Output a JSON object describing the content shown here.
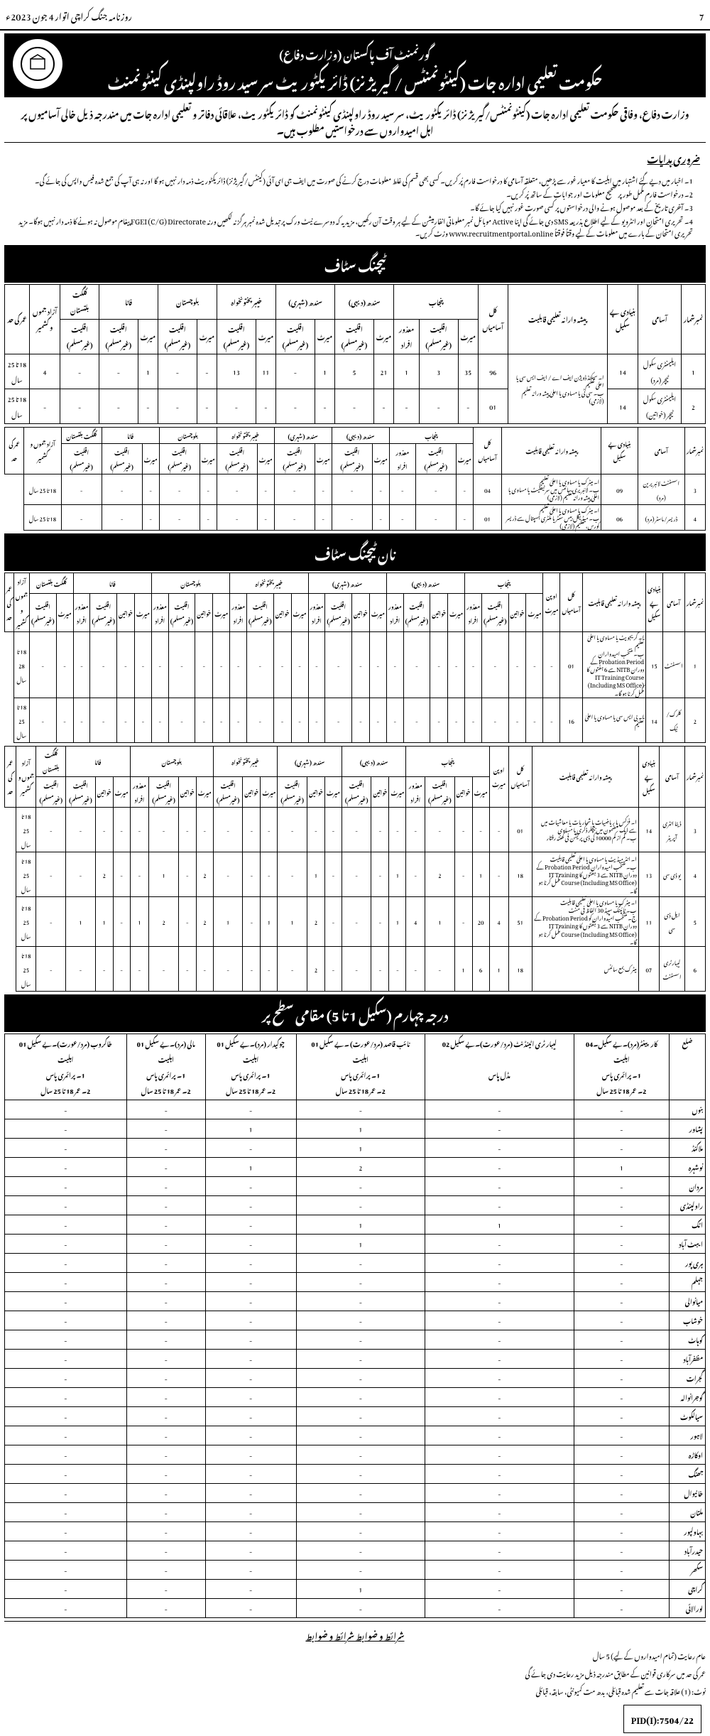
{
  "header": {
    "newspaper": "روزنامہ جنگ کراچی اتوار 4 جون 2023ء",
    "page": "7"
  },
  "org": {
    "top": "گورنمنٹ آف پاکستان (وزارت دفاع)",
    "main": "حکومت تعلیمی ادارہ جات (کینٹونمنٹس / گیریژنز) ڈائریکٹوریٹ سر سید روڈ راولپنڈی کینٹونمنٹ"
  },
  "intro": "وزارت دفاع، وفاقی حکومت تعلیمی ادارہ جات (کینٹونمنٹس/گیریژنز) ڈائریکٹوریٹ، سر سید روڈ راولپنڈی کینٹونمنٹ کو ڈائریکٹوریٹ، علاقائی دفاتر و تعلیمی ادارہ جات میں مندرجہ ذیل خالی آسامیوں پر اہل امیدواروں سے درخواستیں مطلوب ہیں۔",
  "notes_title": "ضروری ہدایات",
  "notes": [
    "اخبار میں دیے گئے اشتہار میں اہلیت کا معیار غور سے پڑھیں، متعلقہ آسامی کا درخواست فارم پُر کریں۔ کسی بھی قسم کی غلط معلومات درج کرنے کی صورت میں ایف جی ای آئی (کینٹس/گیریژنز) ڈائریکٹوریٹ ذمہ دار نہیں ہو گا اور نہ ہی آپ کی جمع شدہ فیس واپس کی جائے گی۔",
    "درخواست فارم مکمل طور پر صحیح معلومات اور جوابات کے ساتھ پُر کریں۔",
    "آخری تاریخ کے بعد موصول ہونے والی درخواستوں پر کسی صورت غور نہیں کیا جائے گا۔",
    "تحریری امتحان اور انٹرویو کے لیے اطلاع بذریعہ SMS دی جائے گی اپنا Active موبائل نمبر معلوماتی انفارمیشن کے لیے ہر وقت آن رکھیں، مزید یہ کہ دوسرے نیٹ ورک پر تبدیل شدہ نمبر ہرگز نہ لکھیں ورنہ FGEI (C/G) Directorate پیغام موصول نہ ہونے کا ذمہ دار نہیں ہوگا۔ مزید تحریری امتحان کے بارے میں معلومات کے لیے وقتاً فوقتاً www.recruitmentportal.online وزٹ کریں۔"
  ],
  "section_teaching": "ٹیچنگ سٹاف",
  "section_nonteaching": "نان ٹیچنگ سٹاف",
  "section_class4": "درجہ چہارم (سکیل 1 تا 5) مقامی سطح پر",
  "teach_headers": {
    "sno": "نمبرشمار",
    "post": "آسامی",
    "scale": "بنیادی پے سکیل",
    "qual": "پیشہ وارانہ تعلیمی قابلیت",
    "total": "کل آسامیاں",
    "punjab": "پنجاب",
    "sindh_r": "سندھ (دیہی)",
    "sindh_u": "سندھ (شہری)",
    "kpk": "خیبر پختونخواہ",
    "baloch": "بلوچستان",
    "fata": "فاٹا",
    "gb": "گلگت بلتستان",
    "ajk": "آزاد جموں و کشمیر",
    "age": "عمر کی حد",
    "merit": "میرٹ",
    "min": "اقلیت (غیرمسلم)",
    "dis": "معذور افراد",
    "wom": "خواتین",
    "open": "اوپن میرٹ"
  },
  "teach_rows": [
    {
      "sno": "1",
      "post": "ایلیمنٹری سکول ٹیچر (مرد)",
      "scale": "14",
      "qual": "ا۔ سیکنڈ ڈویژن ایف اے / ایف ایس سی یا اعلیٰ تعلیم\nب۔ سی ٹی یا مساوی یا اعلیٰ پیشہ ورانہ تعلیم (لازمی)",
      "total": "96",
      "pm": "35",
      "pmin": "3",
      "pdis": "1",
      "srm": "21",
      "srmin": "5",
      "sum": "1",
      "kpm": "11",
      "km": "13",
      "bm": "-",
      "fm": "1",
      "fmin": "-",
      "gbm": "-",
      "ajk": "4",
      "age": "18 تا 25 سال"
    },
    {
      "sno": "2",
      "post": "ایلیمنٹری سکول ٹیچر (خواتین)",
      "scale": "14",
      "qual": "",
      "total": "01",
      "pm": "-",
      "pmin": "-",
      "pdis": "-",
      "srm": "-",
      "srmin": "-",
      "sum": "-",
      "kpm": "-",
      "km": "-",
      "bm": "-",
      "fm": "-",
      "fmin": "-",
      "gbm": "-",
      "ajk": "-",
      "age": "18 تا 25 سال"
    }
  ],
  "teach_rows2": [
    {
      "sno": "3",
      "post": "اسسٹنٹ لائبریرین (مرد)",
      "scale": "09",
      "qual": "ا۔ میٹرک یا مساوی یا اعلیٰ تعلیم\nب۔ لائبریری سائنس میں سرٹیفکیٹ یا مساوی یا اعلیٰ پیشہ ورانہ تعلیم (لازمی)",
      "total": "04",
      "cells": [
        "-",
        "-",
        "-",
        "-",
        "-",
        "-",
        "-",
        "-",
        "-",
        "-",
        "-",
        "-",
        "-"
      ],
      "age": "18 تا 25 سال"
    },
    {
      "sno": "4",
      "post": "ڈریسر/ماسٹر (مرد)",
      "scale": "06",
      "qual": "ا۔ میٹرک یا مساوی یا اعلیٰ تعلیم\nب۔ میڈیکل بیس سنٹر یا ملٹری ہسپتال سے ڈریسر کورس، تعلیم (لازمی)",
      "total": "01",
      "cells": [
        "-",
        "-",
        "-",
        "-",
        "-",
        "-",
        "-",
        "-",
        "-",
        "-",
        "-",
        "-",
        "-"
      ],
      "age": "18 تا 25 سال"
    }
  ],
  "nt_rows1": [
    {
      "sno": "1",
      "post": "اسسٹنٹ",
      "scale": "15",
      "qual": "ا۔ گریجویٹ یا مساوی یا اعلیٰ تعلیم\nب۔ منتخب امیدواران Probation Period کے دوران NITB سے 6 ہفتوں کا IT Training Course (Including MS Office) مکمل کرنا ہو گا۔",
      "total": "01",
      "age": "18 تا 28 سال"
    },
    {
      "sno": "2",
      "post": "کلرک/ٹیک",
      "scale": "14",
      "qual": "ا۔ بی ایس سی یا مساوی یا اعلیٰ تعلیم",
      "total": "16",
      "age": "18 تا 25 سال"
    }
  ],
  "nt_rows2": [
    {
      "sno": "3",
      "post": "ڈیٹا انٹری آپریٹر",
      "scale": "14",
      "qual": "ا۔ فزکس یا ریاضیات یا شماریات یا معاشیات میں سے ایک مضمون میں بیچلر ڈگری یا مساوی\nب۔ کم از کم 10000 کی ڈی پریشن فی گھنٹہ رفتار",
      "total": "01",
      "c": [
        "-",
        "-",
        "-",
        "-",
        "-",
        "-",
        "-",
        "-",
        "-",
        "-",
        "-",
        "-",
        "-",
        "-",
        "-",
        "-",
        "-",
        "-",
        "-",
        "-",
        "-"
      ],
      "age": "18 تا 25 سال"
    },
    {
      "sno": "4",
      "post": "یو ڈی سی",
      "scale": "13",
      "qual": "ا۔ انٹر میڈیٹ یا مساوی یا اعلیٰ تعلیمی قابلیت\nب۔ منتخب امیدواران Probation Period کے دوران NITB سے 3 ہفتوں کا IT Training Course (Including MS Office) مکمل کرنا ہو گا۔",
      "total": "18",
      "c": [
        "-",
        "1",
        "-",
        "2",
        "-",
        "1",
        "-",
        "-",
        "-",
        "1",
        "-",
        "-",
        "-",
        "-",
        "2",
        "-",
        "1",
        "-",
        "-",
        "2",
        "-"
      ],
      "age": "18 تا 25 سال"
    },
    {
      "sno": "5",
      "post": "ایل ڈی سی",
      "scale": "11",
      "qual": "ا۔ میٹرک یا مساوی یا اعلیٰ تعلیمی قابلیت\nب۔ ٹائپنگ سپیڈ 30 الفاظ فی منٹ\nج۔ منتخب امیدواران کو Probation Period کے دوران NITB سے 3 ہفتوں کا IT Training Course (Including MS Office) مکمل کرنا ہو گا۔",
      "total": "51",
      "c": [
        "4",
        "20",
        "-",
        "1",
        "4",
        "1",
        "-",
        "-",
        "-",
        "2",
        "1",
        "1",
        "-",
        "1",
        "2",
        "-",
        "2",
        "1",
        "-",
        "1",
        "1"
      ],
      "age": "18 تا 25 سال"
    },
    {
      "sno": "6",
      "post": "لیبارٹری اسسٹنٹ",
      "scale": "07",
      "qual": "میٹرک بمع سائنس",
      "total": "18",
      "c": [
        "1",
        "6",
        "1",
        "-",
        "-",
        "-",
        "-",
        "-",
        "-",
        "2",
        "-",
        "-",
        "-",
        "-",
        "-",
        "-",
        "-",
        "-",
        "-",
        "-",
        "-"
      ],
      "age": "18 تا 25 سال"
    }
  ],
  "class4_headers": [
    "ضلع",
    "کارپینٹر(مرد)۔بے سکیل۔04\nاہلیت\n1۔ پرائمری پاس\n2۔ عمر 18 تا 25 سال",
    "لیبارٹری اٹینڈنٹ (مرد/عورت)۔بے سکیل 02\n\nمڈل پاس",
    "نائب قاصد (مرد/عورت) ۔بے سکیل 01\nاہلیت\n1۔ پرائمری پاس\n2۔ عمر 18 تا 25 سال",
    "چوکیدار (مرد)۔بے سکیل 01\nاہلیت\n1۔ پرائمری پاس\n2۔ عمر 18 تا 25 سال",
    "مالی (مرد)۔بے سکیل 01\nاہلیت\n1۔ پرائمری پاس\n2۔ عمر 18 تا 25 سال",
    "خاکروب (مرد/عورت)۔بے سکیل 01\nاہلیت\n1۔ پرائمری پاس\n2۔ عمر 18 تا 25 سال"
  ],
  "districts": [
    "بنوں",
    "پشاور",
    "ملاکنڈ",
    "نوشہرہ",
    "مردان",
    "راولپنڈی",
    "اٹک",
    "ایبٹ آباد",
    "ہری پور",
    "جہلم",
    "میانوالی",
    "خوشاب",
    "کوہاٹ",
    "مظفرآباد",
    "گجرات",
    "گوجرانوالہ",
    "سیالکوٹ",
    "لاہور",
    "اوکاڑہ",
    "جھنگ",
    "خانیوال",
    "ملتان",
    "بہاولپور",
    "حیدرآباد",
    "سکھر",
    "کراچی",
    "لورالائی"
  ],
  "class4_rows": [
    [
      "-",
      "-",
      "-",
      "-",
      "-",
      "-"
    ],
    [
      "-",
      "-",
      "1",
      "1",
      "-",
      "-"
    ],
    [
      "-",
      "-",
      "1",
      "-",
      "-",
      "-"
    ],
    [
      "1",
      "-",
      "2",
      "1",
      "-",
      "-"
    ],
    [
      "-",
      "-",
      "-",
      "-",
      "-",
      "-"
    ],
    [
      "-",
      "-",
      "-",
      "-",
      "-",
      "-"
    ],
    [
      "-",
      "1",
      "1",
      "-",
      "-",
      "-"
    ],
    [
      "-",
      "-",
      "1",
      "-",
      "-",
      "-"
    ],
    [
      "-",
      "-",
      "-",
      "-",
      "-",
      "-"
    ],
    [
      "-",
      "-",
      "-",
      "-",
      "-",
      "-"
    ],
    [
      "-",
      "-",
      "-",
      "-",
      "-",
      "-"
    ],
    [
      "-",
      "-",
      "-",
      "-",
      "-",
      "-"
    ],
    [
      "-",
      "-",
      "-",
      "-",
      "-",
      "-"
    ],
    [
      "-",
      "-",
      "-",
      "-",
      "-",
      "-"
    ],
    [
      "-",
      "-",
      "-",
      "-",
      "-",
      "-"
    ],
    [
      "-",
      "-",
      "-",
      "-",
      "-",
      "-"
    ],
    [
      "-",
      "-",
      "-",
      "-",
      "-",
      "-"
    ],
    [
      "-",
      "-",
      "-",
      "-",
      "-",
      "-"
    ],
    [
      "-",
      "-",
      "-",
      "-",
      "-",
      "-"
    ],
    [
      "-",
      "-",
      "-",
      "-",
      "-",
      "-"
    ],
    [
      "-",
      "-",
      "-",
      "-",
      "-",
      "-"
    ],
    [
      "-",
      "-",
      "-",
      "-",
      "-",
      "-"
    ],
    [
      "-",
      "-",
      "-",
      "-",
      "-",
      "-"
    ],
    [
      "-",
      "-",
      "-",
      "-",
      "-",
      "-"
    ],
    [
      "-",
      "-",
      "-",
      "-",
      "-",
      "-"
    ],
    [
      "-",
      "-",
      "1",
      "-",
      "-",
      "-"
    ],
    [
      "-",
      "-",
      "-",
      "-",
      "-",
      "-"
    ]
  ],
  "terms_title": "شرائط و ضوابط شرائط و ضوابط",
  "terms": [
    "عام رعایت (تمام امیدواروں کے لیے)    5 سال",
    "عمر کی حد میں سرکاری قوانین کے مطابق مندرجہ ذیل مزید رعایت دی جائے گی",
    "نوٹ: (1)   علاقہ جات سے تعلیم شدہ قبائلی، بدھ مت کمیونٹی، سابقہ، قبائلی"
  ],
  "pid": "PID(I):7504/22"
}
